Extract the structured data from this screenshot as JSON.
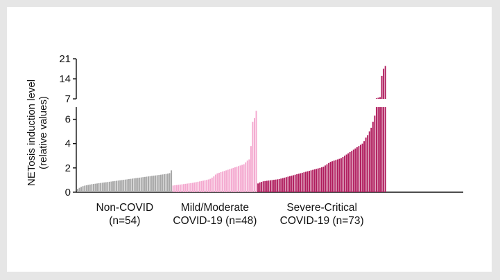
{
  "chart_data": {
    "type": "bar",
    "ylabel_lines": [
      "NETosis induction level",
      "(relative values)"
    ],
    "axis_break": true,
    "ylim_lower": [
      0,
      7
    ],
    "ylim_upper": [
      7,
      21
    ],
    "yticks_lower": [
      "0",
      "2",
      "4",
      "6"
    ],
    "yticks_upper": [
      "7",
      "14",
      "21"
    ],
    "groups": [
      {
        "label_lines": [
          "Non-COVID",
          "(n=54)"
        ],
        "color": "#a6a6a6",
        "n": 54,
        "values": [
          0.28,
          0.36,
          0.44,
          0.5,
          0.54,
          0.57,
          0.6,
          0.63,
          0.66,
          0.68,
          0.7,
          0.72,
          0.74,
          0.76,
          0.78,
          0.8,
          0.82,
          0.84,
          0.86,
          0.88,
          0.9,
          0.92,
          0.94,
          0.96,
          0.98,
          1.0,
          1.02,
          1.04,
          1.06,
          1.08,
          1.1,
          1.12,
          1.14,
          1.16,
          1.18,
          1.2,
          1.22,
          1.24,
          1.26,
          1.28,
          1.3,
          1.32,
          1.34,
          1.36,
          1.38,
          1.4,
          1.42,
          1.44,
          1.46,
          1.48,
          1.5,
          1.53,
          1.57,
          1.8
        ]
      },
      {
        "label_lines": [
          "Mild/Moderate",
          "COVID-19 (n=48)"
        ],
        "color": "#f4a8cf",
        "n": 48,
        "values": [
          0.55,
          0.57,
          0.59,
          0.61,
          0.63,
          0.65,
          0.67,
          0.69,
          0.71,
          0.73,
          0.75,
          0.77,
          0.8,
          0.83,
          0.86,
          0.89,
          0.92,
          0.95,
          0.98,
          1.01,
          1.05,
          1.1,
          1.2,
          1.3,
          1.45,
          1.55,
          1.6,
          1.65,
          1.7,
          1.75,
          1.8,
          1.85,
          1.9,
          1.95,
          2.0,
          2.05,
          2.1,
          2.15,
          2.2,
          2.25,
          2.3,
          2.45,
          2.6,
          2.7,
          3.8,
          5.8,
          6.1,
          6.7
        ]
      },
      {
        "label_lines": [
          "Severe-Critical",
          "COVID-19 (n=73)"
        ],
        "color": "#b01d5e",
        "n": 73,
        "values": [
          0.72,
          0.8,
          0.85,
          0.9,
          0.92,
          0.94,
          0.96,
          0.98,
          1.0,
          1.02,
          1.04,
          1.06,
          1.08,
          1.12,
          1.16,
          1.2,
          1.24,
          1.28,
          1.32,
          1.36,
          1.4,
          1.44,
          1.48,
          1.52,
          1.56,
          1.6,
          1.64,
          1.68,
          1.72,
          1.76,
          1.8,
          1.84,
          1.88,
          1.92,
          1.96,
          2.0,
          2.05,
          2.1,
          2.2,
          2.3,
          2.4,
          2.5,
          2.55,
          2.6,
          2.65,
          2.7,
          2.75,
          2.8,
          2.9,
          3.0,
          3.1,
          3.2,
          3.3,
          3.4,
          3.5,
          3.6,
          3.7,
          3.8,
          3.9,
          4.0,
          4.2,
          4.5,
          4.7,
          5.0,
          5.3,
          5.8,
          6.3,
          7.2,
          7.4,
          7.6,
          15.0,
          17.5,
          18.5
        ]
      }
    ]
  }
}
